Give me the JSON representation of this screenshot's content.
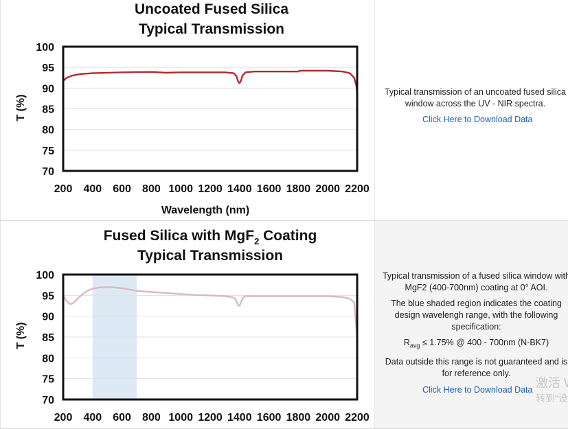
{
  "colors": {
    "curve1": "#b22a2a",
    "curve2": "#d7b9c6",
    "band": "#dde9f5",
    "grid": "#e0e0e0",
    "link": "#1a5fb4"
  },
  "chart_data": [
    {
      "type": "line",
      "title": [
        "Uncoated Fused Silica",
        "Typical Transmission"
      ],
      "xlabel": "Wavelength (nm)",
      "ylabel": "T (%)",
      "xlim": [
        200,
        2200
      ],
      "ylim": [
        70,
        100
      ],
      "xticks": [
        200,
        400,
        600,
        800,
        1000,
        1200,
        1400,
        1600,
        1800,
        2000,
        2200
      ],
      "yticks": [
        100,
        95,
        90,
        85,
        80,
        75,
        70
      ],
      "grid": true,
      "series": [
        {
          "x": [
            200,
            220,
            260,
            320,
            400,
            600,
            800,
            900,
            1000,
            1200,
            1300,
            1360,
            1380,
            1390,
            1400,
            1410,
            1420,
            1440,
            1500,
            1700,
            1800,
            1810,
            1900,
            2000,
            2100,
            2150,
            2180,
            2195,
            2200
          ],
          "y": [
            91.7,
            92.4,
            93.0,
            93.4,
            93.6,
            93.8,
            93.9,
            93.7,
            93.8,
            93.8,
            93.8,
            93.6,
            92.8,
            91.6,
            91.2,
            91.8,
            93.0,
            93.8,
            94.0,
            94.0,
            94.0,
            94.2,
            94.2,
            94.2,
            94.0,
            93.6,
            92.5,
            90.5,
            88.5
          ]
        }
      ]
    },
    {
      "type": "line",
      "title": [
        "Fused Silica with MgF",
        "2",
        " Coating",
        "Typical Transmission"
      ],
      "xlabel": "",
      "ylabel": "T (%)",
      "xlim": [
        200,
        2200
      ],
      "ylim": [
        70,
        100
      ],
      "xticks": [
        200,
        400,
        600,
        800,
        1000,
        1200,
        1400,
        1600,
        1800,
        2000,
        2200
      ],
      "yticks": [
        100,
        95,
        90,
        85,
        80,
        75,
        70
      ],
      "grid": true,
      "shaded_region": [
        400,
        700
      ],
      "series": [
        {
          "x": [
            200,
            220,
            240,
            260,
            280,
            300,
            330,
            360,
            400,
            450,
            500,
            550,
            600,
            650,
            700,
            800,
            900,
            1000,
            1100,
            1200,
            1300,
            1350,
            1370,
            1380,
            1390,
            1400,
            1410,
            1420,
            1440,
            1500,
            1700,
            1900,
            2000,
            2100,
            2150,
            2180,
            2200
          ],
          "y": [
            95.0,
            93.8,
            93.0,
            93.0,
            93.5,
            94.3,
            95.2,
            96.0,
            96.6,
            96.9,
            97.0,
            96.9,
            96.7,
            96.4,
            96.1,
            95.8,
            95.6,
            95.3,
            95.1,
            95.0,
            94.8,
            94.6,
            94.2,
            93.4,
            92.6,
            92.5,
            93.3,
            94.3,
            94.8,
            94.8,
            94.8,
            94.8,
            94.8,
            94.6,
            94.2,
            93.3,
            85.0
          ]
        }
      ]
    }
  ],
  "panels": [
    {
      "paragraphs": [
        "Typical transmission of an uncoated fused silica window across the UV - NIR spectra."
      ],
      "link": "Click Here to Download Data"
    },
    {
      "p1": "Typical transmission of a fused silica window with MgF2 (400-700nm) coating at 0° AOI.",
      "p2": "The blue shaded region indicates the coating design wavelengh range, with the following specification:",
      "spec_r": "R",
      "spec_sub": "avg",
      "spec_rest": " ≤ 1.75% @ 400 - 700nm (N-BK7)",
      "p3": "Data outside this range is not guaranteed and is for reference only.",
      "link": "Click Here to Download Data"
    }
  ],
  "watermark": {
    "line1": "激活 W",
    "line2": "转到“设"
  }
}
